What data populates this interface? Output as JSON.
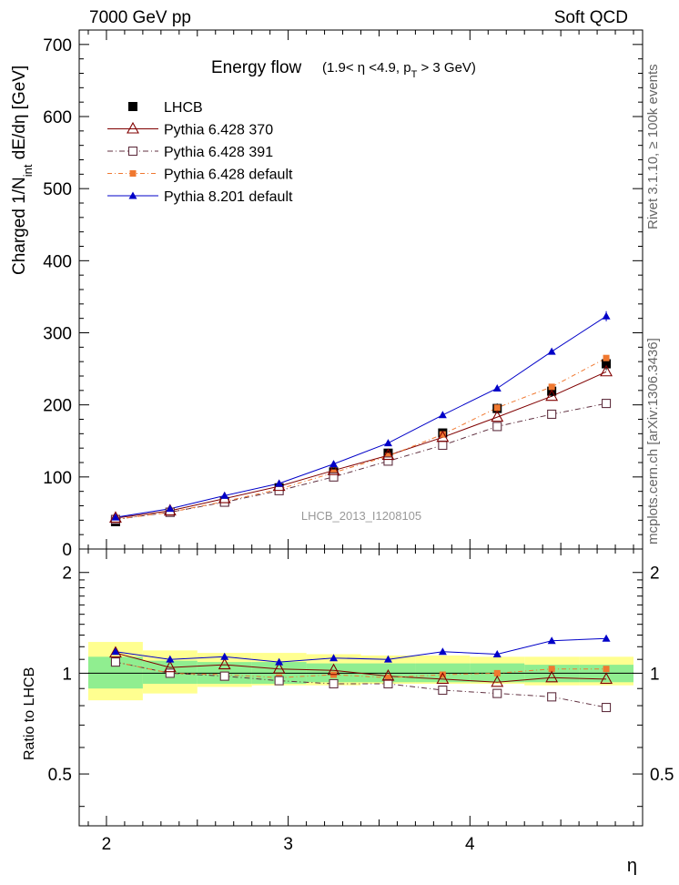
{
  "header": {
    "left": "7000 GeV pp",
    "right": "Soft QCD"
  },
  "plot_title": {
    "main": "Energy flow",
    "sub_a": "(1.9< η <4.9, p",
    "sub_sub": "T",
    "sub_b": " > 3 GeV)"
  },
  "ylabel_main": {
    "a": "Charged 1/N",
    "sub": "int",
    "b": " dE/dη [GeV]"
  },
  "side_text": {
    "rivet": "Rivet 3.1.10, ≥ 100k events",
    "mcplots": "mcplots.cern.ch [arXiv:1306.3436]"
  },
  "watermark": "LHCB_2013_I1208105",
  "chart_data": [
    {
      "type": "line",
      "panel": "main",
      "title": "Energy flow (1.9< η <4.9, pT > 3 GeV)",
      "ylabel": "Charged 1/Nint dE/dη [GeV]",
      "xlim": [
        1.85,
        4.95
      ],
      "ylim": [
        0,
        720
      ],
      "yticks": [
        0,
        100,
        200,
        300,
        400,
        500,
        600,
        700
      ],
      "legend_position": "top-left",
      "x": [
        2.05,
        2.35,
        2.65,
        2.95,
        3.25,
        3.55,
        3.85,
        4.15,
        4.45,
        4.75
      ],
      "series": [
        {
          "name": "LHCB",
          "color": "#000000",
          "marker": "square-filled",
          "values": [
            38,
            51,
            66,
            85,
            107,
            133,
            161,
            195,
            219,
            257
          ]
        },
        {
          "name": "Pythia 6.428 370",
          "color": "#800000",
          "marker": "triangle-open",
          "values": [
            43,
            53,
            70,
            87,
            109,
            130,
            155,
            183,
            212,
            246
          ]
        },
        {
          "name": "Pythia 6.428 391",
          "color": "#603040",
          "marker": "square-open",
          "values": [
            41,
            51,
            65,
            81,
            100,
            122,
            144,
            170,
            187,
            202
          ]
        },
        {
          "name": "Pythia 6.428 default",
          "color": "#f07830",
          "marker": "square-filled-small",
          "values": [
            41,
            51,
            66,
            83,
            106,
            129,
            159,
            196,
            225,
            265
          ]
        },
        {
          "name": "Pythia 8.201 default",
          "color": "#0000c8",
          "marker": "triangle-filled",
          "values": [
            44,
            56,
            74,
            91,
            118,
            147,
            186,
            223,
            274,
            323
          ]
        }
      ]
    },
    {
      "type": "line",
      "panel": "ratio",
      "ylabel": "Ratio to LHCB",
      "xlabel": "η",
      "xlim": [
        1.85,
        4.95
      ],
      "ylim": [
        0.35,
        2.35
      ],
      "yscale": "log",
      "xticks": [
        2,
        3,
        4
      ],
      "yticks": [
        0.5,
        1,
        2
      ],
      "x": [
        2.05,
        2.35,
        2.65,
        2.95,
        3.25,
        3.55,
        3.85,
        4.15,
        4.45,
        4.75
      ],
      "bands": {
        "bin_edges": [
          1.9,
          2.2,
          2.5,
          2.8,
          3.1,
          3.4,
          3.7,
          4.0,
          4.3,
          4.6,
          4.9
        ],
        "stat_low": [
          0.9,
          0.93,
          0.93,
          0.93,
          0.94,
          0.94,
          0.94,
          0.94,
          0.94,
          0.94
        ],
        "stat_high": [
          1.12,
          1.09,
          1.08,
          1.08,
          1.07,
          1.07,
          1.07,
          1.07,
          1.06,
          1.06
        ],
        "total_low": [
          0.83,
          0.87,
          0.91,
          0.92,
          0.92,
          0.93,
          0.93,
          0.93,
          0.92,
          0.92
        ],
        "total_high": [
          1.24,
          1.17,
          1.15,
          1.15,
          1.14,
          1.13,
          1.13,
          1.12,
          1.12,
          1.12
        ],
        "stat_color": "#90ee90",
        "total_color": "#ffff90"
      },
      "series": [
        {
          "name": "Pythia 6.428 370",
          "color": "#800000",
          "marker": "triangle-open",
          "values": [
            1.15,
            1.04,
            1.06,
            1.03,
            1.02,
            0.98,
            0.96,
            0.94,
            0.97,
            0.96
          ]
        },
        {
          "name": "Pythia 6.428 391",
          "color": "#603040",
          "marker": "square-open",
          "values": [
            1.08,
            1.0,
            0.98,
            0.95,
            0.93,
            0.93,
            0.89,
            0.87,
            0.85,
            0.79
          ]
        },
        {
          "name": "Pythia 6.428 default",
          "color": "#f07830",
          "marker": "square-filled-small",
          "values": [
            1.08,
            1.0,
            0.99,
            0.97,
            0.99,
            0.97,
            0.99,
            1.0,
            1.03,
            1.03
          ]
        },
        {
          "name": "Pythia 8.201 default",
          "color": "#0000c8",
          "marker": "triangle-filled",
          "values": [
            1.16,
            1.1,
            1.12,
            1.08,
            1.11,
            1.1,
            1.16,
            1.14,
            1.25,
            1.27
          ]
        }
      ]
    }
  ]
}
